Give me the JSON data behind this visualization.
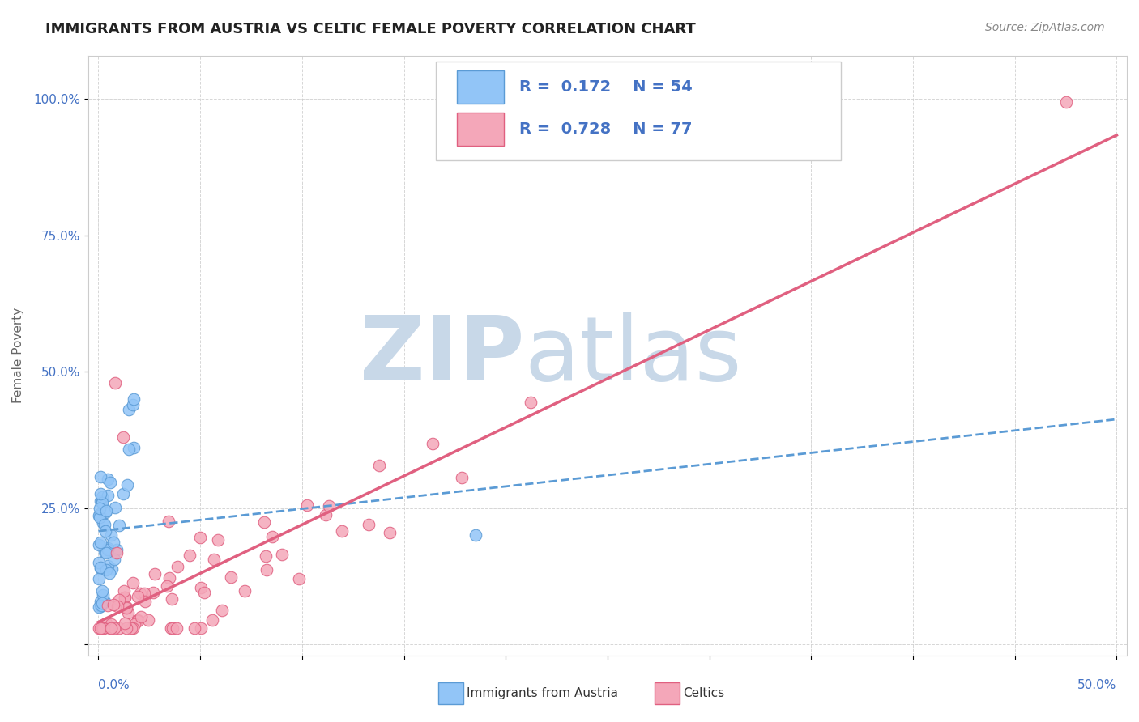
{
  "title": "IMMIGRANTS FROM AUSTRIA VS CELTIC FEMALE POVERTY CORRELATION CHART",
  "source_text": "Source: ZipAtlas.com",
  "ylabel": "Female Poverty",
  "legend_R1": "0.172",
  "legend_N1": "54",
  "legend_R2": "0.728",
  "legend_N2": "77",
  "series1_color": "#92C5F7",
  "series1_edge": "#5B9BD5",
  "series2_color": "#F4A7B9",
  "series2_edge": "#E06080",
  "line1_color": "#5B9BD5",
  "line2_color": "#E06080",
  "watermark": "ZIPAtlas",
  "watermark_color": "#C8D8E8",
  "background_color": "#FFFFFF",
  "xlim": [
    0.0,
    0.5
  ],
  "ylim": [
    0.0,
    1.0
  ],
  "ytick_vals": [
    0.0,
    0.25,
    0.5,
    0.75,
    1.0
  ],
  "ytick_labels": [
    "",
    "25.0%",
    "50.0%",
    "75.0%",
    "100.0%"
  ]
}
